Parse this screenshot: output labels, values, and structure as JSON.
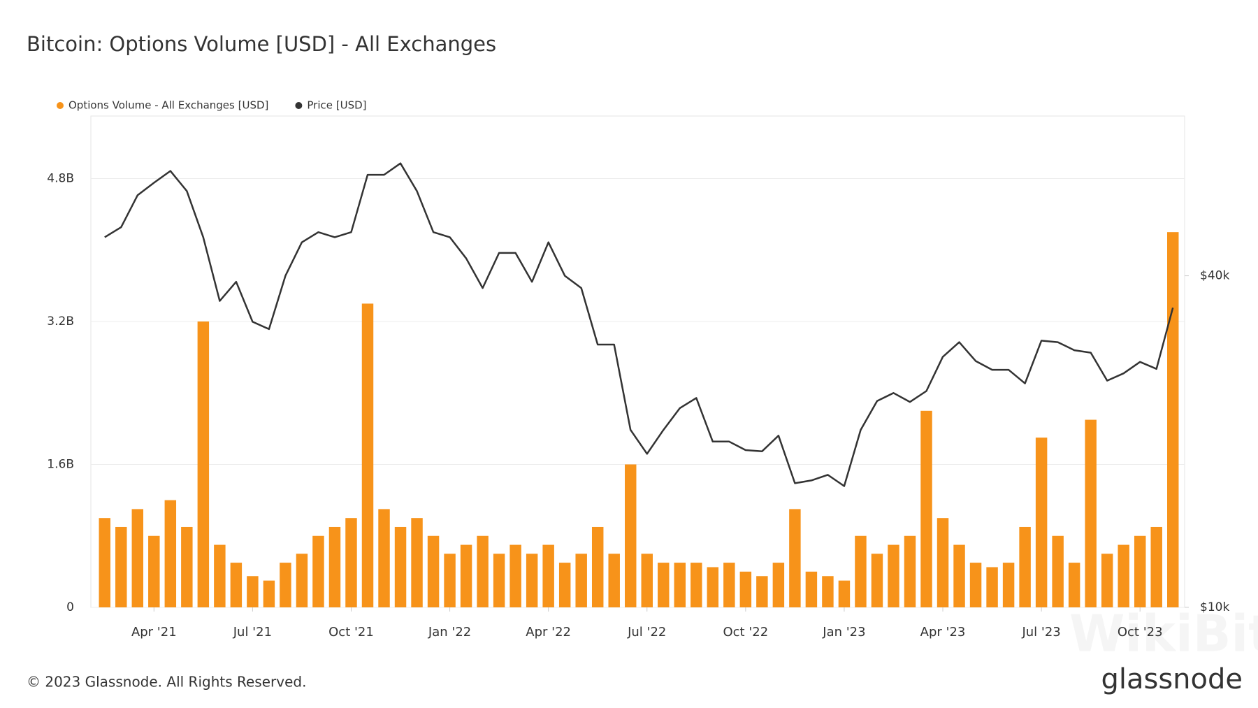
{
  "chart_data": {
    "type": "bar-line",
    "title": "Bitcoin: Options Volume [USD] - All Exchanges",
    "categories": [
      null,
      null,
      null,
      "Apr '21",
      null,
      null,
      null,
      null,
      null,
      "Jul '21",
      null,
      null,
      null,
      null,
      null,
      "Oct '21",
      null,
      null,
      null,
      null,
      null,
      "Jan '22",
      null,
      null,
      null,
      null,
      null,
      "Apr '22",
      null,
      null,
      null,
      null,
      null,
      "Jul '22",
      null,
      null,
      null,
      null,
      null,
      "Oct '22",
      null,
      null,
      null,
      null,
      null,
      "Jan '23",
      null,
      null,
      null,
      null,
      null,
      "Apr '23",
      null,
      null,
      null,
      null,
      null,
      "Jul '23",
      null,
      null,
      null,
      null,
      null,
      "Oct '23",
      null,
      null
    ],
    "series": [
      {
        "name": "Options Volume - All Exchanges [USD]",
        "type": "bar",
        "color": "#f7931a",
        "values": [
          1000000000.0,
          900000000.0,
          1100000000.0,
          800000000.0,
          1200000000.0,
          900000000.0,
          3200000000.0,
          700000000.0,
          500000000.0,
          350000000.0,
          300000000.0,
          500000000.0,
          600000000.0,
          800000000.0,
          900000000.0,
          1000000000.0,
          3400000000.0,
          1100000000.0,
          900000000.0,
          1000000000.0,
          800000000.0,
          600000000.0,
          700000000.0,
          800000000.0,
          600000000.0,
          700000000.0,
          600000000.0,
          700000000.0,
          500000000.0,
          600000000.0,
          900000000.0,
          600000000.0,
          1600000000.0,
          600000000.0,
          500000000.0,
          500000000.0,
          500000000.0,
          450000000.0,
          500000000.0,
          400000000.0,
          350000000.0,
          500000000.0,
          1100000000.0,
          400000000.0,
          350000000.0,
          300000000.0,
          800000000.0,
          600000000.0,
          700000000.0,
          800000000.0,
          2200000000.0,
          1000000000.0,
          700000000.0,
          500000000.0,
          450000000.0,
          500000000.0,
          900000000.0,
          1900000000.0,
          800000000.0,
          500000000.0,
          2100000000.0,
          600000000.0,
          700000000.0,
          800000000.0,
          900000000.0,
          4200000000.0
        ]
      },
      {
        "name": "Price [USD]",
        "type": "line",
        "color": "#333333",
        "axis": "y2",
        "values": [
          47000,
          49000,
          56000,
          59000,
          62000,
          57000,
          47000,
          36000,
          39000,
          33000,
          32000,
          40000,
          46000,
          48000,
          47000,
          48000,
          61000,
          61000,
          64000,
          57000,
          48000,
          47000,
          43000,
          38000,
          44000,
          44000,
          39000,
          46000,
          40000,
          38000,
          30000,
          30000,
          21000,
          19000,
          21000,
          23000,
          24000,
          20000,
          20000,
          19300,
          19200,
          20500,
          16800,
          17000,
          17400,
          16600,
          21000,
          23700,
          24500,
          23600,
          24700,
          28500,
          30300,
          28000,
          27000,
          27000,
          25500,
          30500,
          30300,
          29300,
          29000,
          25800,
          26600,
          27900,
          27100,
          35000
        ]
      }
    ],
    "ylim": [
      0,
      5500000000.0
    ],
    "yticks": [
      0,
      {
        "value": 1600000000.0,
        "label": "1.6B"
      },
      {
        "value": 3200000000.0,
        "label": "3.2B"
      },
      {
        "value": 4800000000.0,
        "label": "4.8B"
      }
    ],
    "y2lim": [
      10000,
      78000
    ],
    "y2ticks": [
      {
        "value": 10000,
        "label": "$10k"
      },
      {
        "value": 40000,
        "label": "$40k"
      }
    ],
    "y2log": true,
    "grid": true,
    "legend": "top-left",
    "copyright": "© 2023 Glassnode. All Rights Reserved.",
    "brand": "glassnode",
    "watermark": "WikiBit"
  }
}
